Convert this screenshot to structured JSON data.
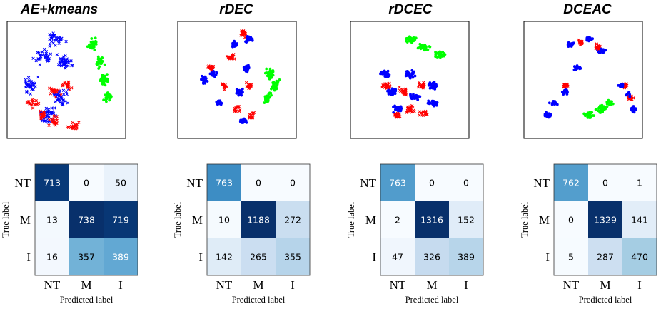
{
  "chart_data": [
    {
      "type": "scatter",
      "title": "AE+kmeans",
      "series_colors": [
        "#0000ff",
        "#ff0000",
        "#00ff00"
      ]
    },
    {
      "type": "scatter",
      "title": "rDEC",
      "series_colors": [
        "#0000ff",
        "#ff0000",
        "#00ff00"
      ]
    },
    {
      "type": "scatter",
      "title": "rDCEC",
      "series_colors": [
        "#0000ff",
        "#ff0000",
        "#00ff00"
      ]
    },
    {
      "type": "scatter",
      "title": "DCEAC",
      "series_colors": [
        "#0000ff",
        "#ff0000",
        "#00ff00"
      ]
    },
    {
      "type": "heatmap",
      "ylabel": "True label",
      "xlabel": "Predicted label",
      "x_categories": [
        "NT",
        "M",
        "I"
      ],
      "y_categories": [
        "NT",
        "M",
        "I"
      ],
      "values": [
        [
          713,
          0,
          50
        ],
        [
          13,
          738,
          719
        ],
        [
          16,
          357,
          389
        ]
      ],
      "colormap": "Blues",
      "vmax": 738
    },
    {
      "type": "heatmap",
      "ylabel": "True label",
      "xlabel": "Predicted label",
      "x_categories": [
        "NT",
        "M",
        "I"
      ],
      "y_categories": [
        "NT",
        "M",
        "I"
      ],
      "values": [
        [
          763,
          0,
          0
        ],
        [
          10,
          1188,
          272
        ],
        [
          142,
          265,
          355
        ]
      ],
      "colormap": "Blues",
      "vmax": 1188
    },
    {
      "type": "heatmap",
      "ylabel": "True label",
      "xlabel": "Predicted label",
      "x_categories": [
        "NT",
        "M",
        "I"
      ],
      "y_categories": [
        "NT",
        "M",
        "I"
      ],
      "values": [
        [
          763,
          0,
          0
        ],
        [
          2,
          1316,
          152
        ],
        [
          47,
          326,
          389
        ]
      ],
      "colormap": "Blues",
      "vmax": 1316
    },
    {
      "type": "heatmap",
      "ylabel": "True label",
      "xlabel": "Predicted label",
      "x_categories": [
        "NT",
        "M",
        "I"
      ],
      "y_categories": [
        "NT",
        "M",
        "I"
      ],
      "values": [
        [
          762,
          0,
          1
        ],
        [
          0,
          1329,
          141
        ],
        [
          5,
          287,
          470
        ]
      ],
      "colormap": "Blues",
      "vmax": 1329
    }
  ]
}
